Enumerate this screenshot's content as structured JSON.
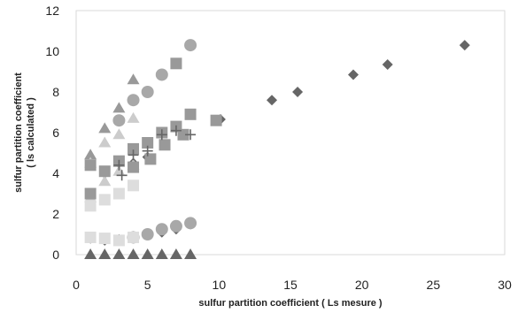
{
  "chart_data": {
    "type": "scatter",
    "title": "",
    "xlabel": "sulfur partition coefficient ( Ls mesure )",
    "ylabel_line1": "sulfur partition coefficient",
    "ylabel_line2": "( ls calculated )",
    "xlim": [
      0,
      30
    ],
    "ylim": [
      0,
      12
    ],
    "xticks": [
      0,
      5,
      10,
      15,
      20,
      25,
      30
    ],
    "yticks": [
      0,
      2,
      4,
      6,
      8,
      10,
      12
    ],
    "grid": false,
    "legend": "none",
    "series": [
      {
        "marker": "diamond",
        "color": "#666666",
        "points": [
          [
            13.7,
            7.6
          ],
          [
            15.5,
            8.0
          ],
          [
            19.4,
            8.85
          ],
          [
            21.8,
            9.35
          ],
          [
            27.2,
            10.3
          ],
          [
            10.1,
            6.65
          ]
        ]
      },
      {
        "marker": "diamond",
        "color": "#666666",
        "points": [
          [
            1,
            0.8
          ],
          [
            2,
            0.7
          ],
          [
            3,
            0.75
          ],
          [
            4,
            0.9
          ],
          [
            5,
            1.0
          ],
          [
            6,
            1.1
          ],
          [
            7,
            1.25
          ],
          [
            8,
            1.5
          ],
          [
            1,
            3.0
          ],
          [
            2,
            4.0
          ],
          [
            3,
            4.5
          ],
          [
            4,
            4.5
          ],
          [
            5,
            4.8
          ]
        ]
      },
      {
        "marker": "triangle",
        "color": "#666666",
        "points": [
          [
            1,
            0
          ],
          [
            2,
            0
          ],
          [
            3,
            0
          ],
          [
            4,
            0
          ],
          [
            5,
            0
          ],
          [
            6,
            0
          ],
          [
            7,
            0
          ],
          [
            8,
            0
          ]
        ]
      },
      {
        "marker": "triangle",
        "color": "#999999",
        "points": [
          [
            1,
            4.9
          ],
          [
            2,
            6.2
          ],
          [
            3,
            7.2
          ],
          [
            4,
            8.6
          ]
        ]
      },
      {
        "marker": "triangle",
        "color": "#cccccc",
        "points": [
          [
            1,
            2.8
          ],
          [
            2,
            3.6
          ],
          [
            3,
            4.1
          ],
          [
            4,
            4.4
          ],
          [
            1,
            4.5
          ],
          [
            2,
            5.5
          ],
          [
            3,
            5.9
          ],
          [
            4,
            6.7
          ]
        ]
      },
      {
        "marker": "circle",
        "color": "#a8a8a8",
        "points": [
          [
            3,
            6.6
          ],
          [
            4,
            7.6
          ],
          [
            5,
            8.0
          ],
          [
            6,
            8.85
          ],
          [
            8,
            10.3
          ]
        ]
      },
      {
        "marker": "circle",
        "color": "#a8a8a8",
        "points": [
          [
            4,
            0.85
          ],
          [
            5,
            1.0
          ],
          [
            6,
            1.25
          ],
          [
            7,
            1.4
          ],
          [
            8,
            1.55
          ]
        ]
      },
      {
        "marker": "square",
        "color": "#999999",
        "points": [
          [
            1,
            4.4
          ],
          [
            2,
            4.1
          ],
          [
            3,
            4.6
          ],
          [
            4,
            5.2
          ],
          [
            5,
            5.5
          ],
          [
            6,
            6.0
          ],
          [
            7,
            6.3
          ],
          [
            8,
            6.9
          ],
          [
            9.8,
            6.6
          ],
          [
            7.5,
            5.9
          ],
          [
            6.2,
            5.4
          ],
          [
            5.2,
            4.7
          ],
          [
            4,
            4.3
          ],
          [
            1,
            3.0
          ],
          [
            7,
            9.4
          ]
        ]
      },
      {
        "marker": "square",
        "color": "#dddddd",
        "points": [
          [
            1,
            2.4
          ],
          [
            2,
            2.7
          ],
          [
            3,
            3.0
          ],
          [
            4,
            3.4
          ],
          [
            1,
            0.85
          ],
          [
            2,
            0.8
          ],
          [
            3,
            0.7
          ],
          [
            4,
            0.85
          ]
        ]
      },
      {
        "marker": "plus",
        "color": "#666666",
        "points": [
          [
            4,
            4.9
          ],
          [
            5,
            5.1
          ],
          [
            6,
            5.9
          ],
          [
            7,
            6.1
          ],
          [
            8,
            5.9
          ],
          [
            3,
            4.4
          ],
          [
            3.2,
            3.9
          ]
        ]
      }
    ]
  }
}
